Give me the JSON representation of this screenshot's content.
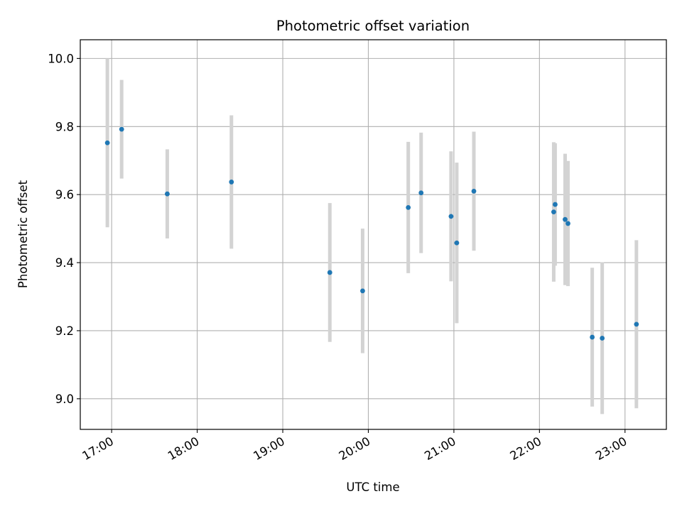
{
  "chart_data": {
    "type": "scatter",
    "title": "Photometric offset variation",
    "xlabel": "UTC time",
    "ylabel": "Photometric offset",
    "xlim": [
      "16:38",
      "23:29"
    ],
    "ylim": [
      8.91,
      10.055
    ],
    "grid": true,
    "x_ticks": [
      "17:00",
      "18:00",
      "19:00",
      "20:00",
      "21:00",
      "22:00",
      "23:00"
    ],
    "y_ticks": [
      "9.0",
      "9.2",
      "9.4",
      "9.6",
      "9.8",
      "10.0"
    ],
    "series": [
      {
        "marker_color": "#1f77b4",
        "errorbar_color": "#d3d3d3",
        "points": [
          {
            "x": "16:57",
            "y": 9.752,
            "err": 0.248
          },
          {
            "x": "17:07",
            "y": 9.792,
            "err": 0.145
          },
          {
            "x": "17:39",
            "y": 9.602,
            "err": 0.131
          },
          {
            "x": "18:24",
            "y": 9.637,
            "err": 0.196
          },
          {
            "x": "19:33",
            "y": 9.371,
            "err": 0.204
          },
          {
            "x": "19:56",
            "y": 9.317,
            "err": 0.183
          },
          {
            "x": "20:28",
            "y": 9.562,
            "err": 0.193
          },
          {
            "x": "20:37",
            "y": 9.605,
            "err": 0.177
          },
          {
            "x": "20:58",
            "y": 9.536,
            "err": 0.191
          },
          {
            "x": "21:02",
            "y": 9.458,
            "err": 0.236
          },
          {
            "x": "21:14",
            "y": 9.61,
            "err": 0.175
          },
          {
            "x": "22:10",
            "y": 9.549,
            "err": 0.205
          },
          {
            "x": "22:11",
            "y": 9.571,
            "err": 0.18
          },
          {
            "x": "22:18",
            "y": 9.527,
            "err": 0.193
          },
          {
            "x": "22:20",
            "y": 9.515,
            "err": 0.184
          },
          {
            "x": "22:37",
            "y": 9.181,
            "err": 0.204
          },
          {
            "x": "22:44",
            "y": 9.178,
            "err": 0.223
          },
          {
            "x": "23:08",
            "y": 9.219,
            "err": 0.247
          }
        ]
      }
    ]
  }
}
